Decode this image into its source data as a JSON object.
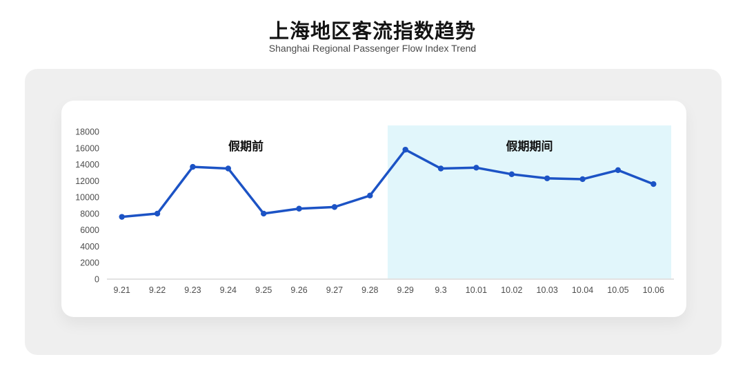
{
  "header": {
    "title": "上海地区客流指数趋势",
    "subtitle": "Shanghai Regional Passenger Flow Index Trend"
  },
  "chart_data": {
    "type": "line",
    "title": "上海地区客流指数趋势",
    "subtitle": "Shanghai Regional Passenger Flow Index Trend",
    "categories": [
      "9.21",
      "9.22",
      "9.23",
      "9.24",
      "9.25",
      "9.26",
      "9.27",
      "9.28",
      "9.29",
      "9.3",
      "10.01",
      "10.02",
      "10.03",
      "10.04",
      "10.05",
      "10.06"
    ],
    "values": [
      7600,
      8000,
      13700,
      13500,
      8000,
      8600,
      8800,
      10200,
      15800,
      13500,
      13600,
      12800,
      12300,
      12200,
      13300,
      11600
    ],
    "xlabel": "",
    "ylabel": "",
    "ylim": [
      0,
      18000
    ],
    "y_ticks": [
      0,
      2000,
      4000,
      6000,
      8000,
      10000,
      12000,
      14000,
      16000,
      18000
    ],
    "grid": false,
    "legend_position": "none",
    "annotations": [
      {
        "text": "假期前",
        "x_index": 3.5
      },
      {
        "text": "假期期间",
        "x_index": 11.5
      }
    ],
    "holiday_band": {
      "start_index": 8,
      "end_index": 15.5
    },
    "colors": {
      "line": "#1c53c5",
      "point": "#1c53c5",
      "holiday_band": "#e1f6fb",
      "axis_line": "#d9d9d9",
      "tick_label": "#4d4d4d",
      "annotation_text": "#111111"
    }
  }
}
